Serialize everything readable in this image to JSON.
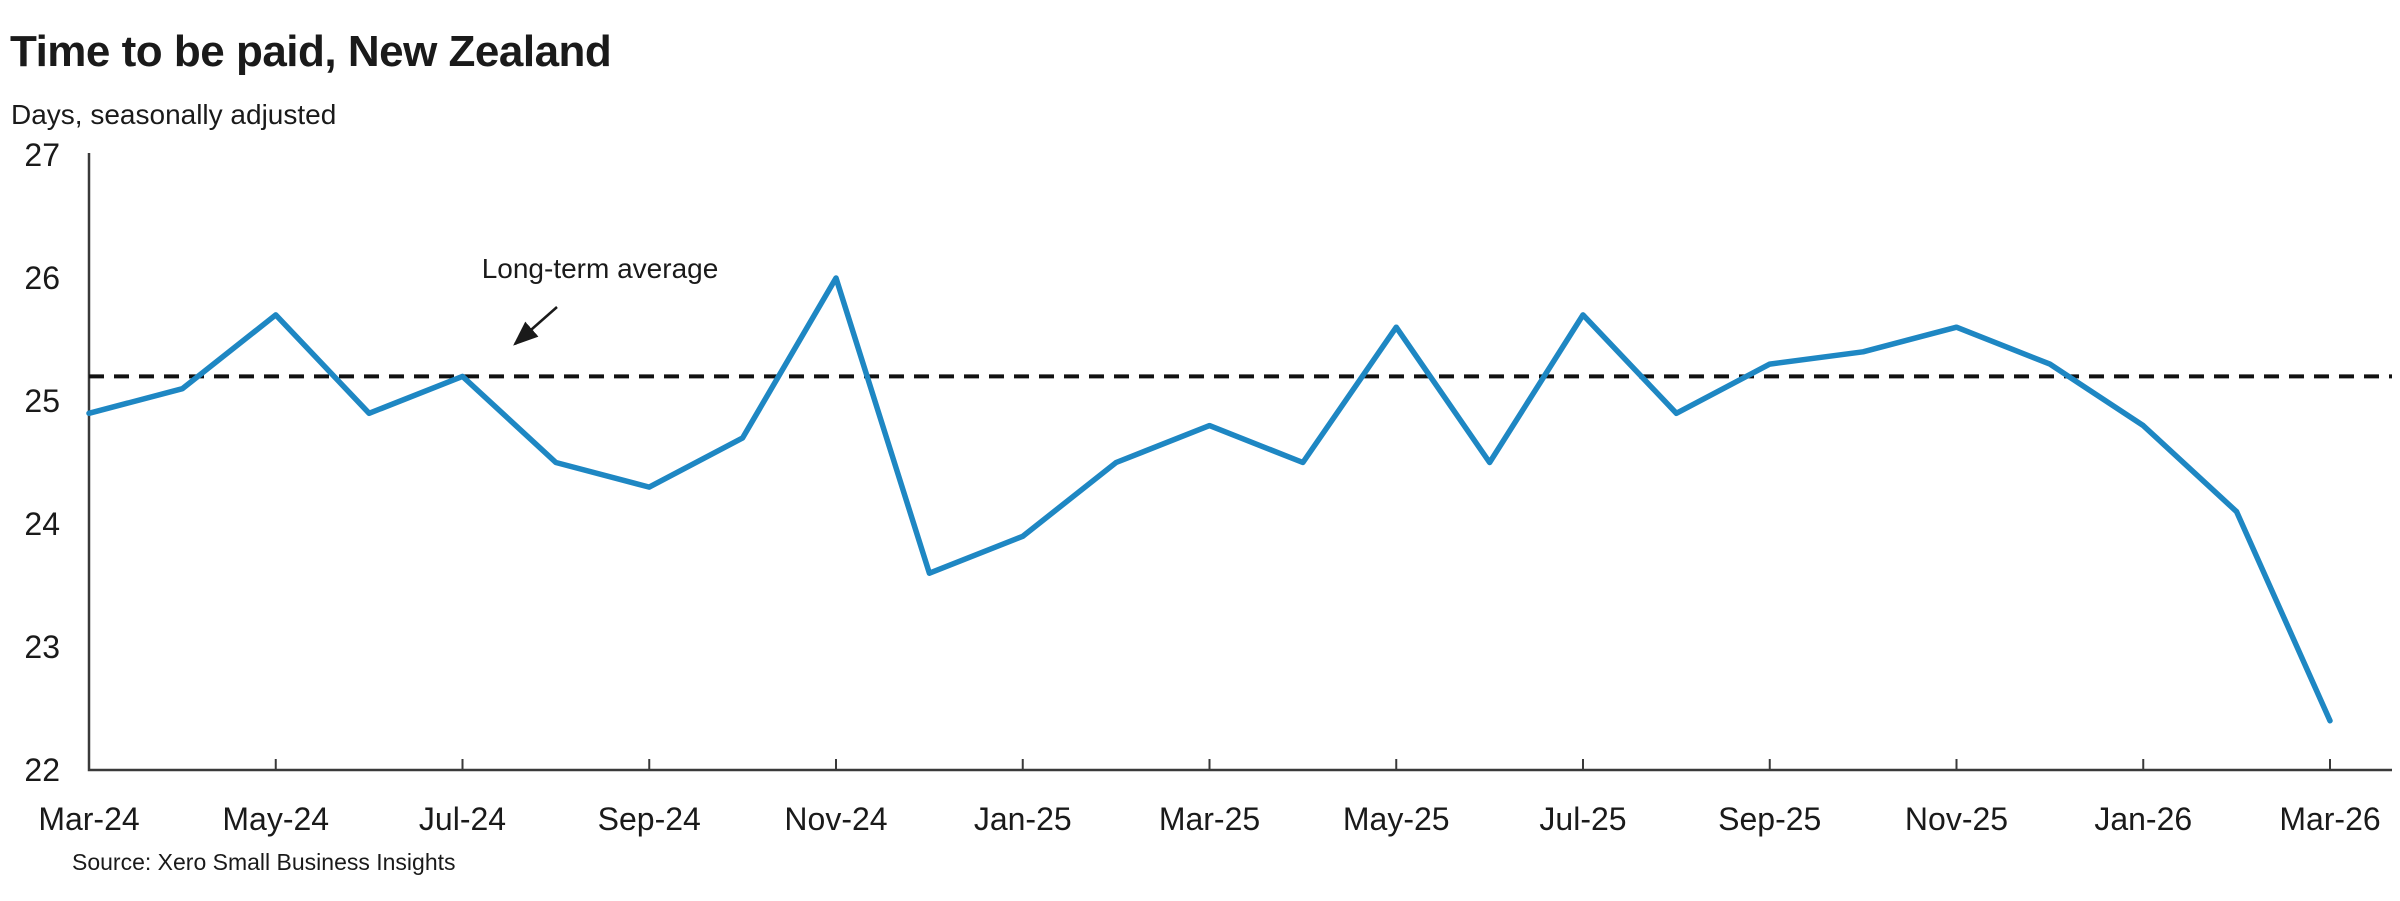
{
  "header": {
    "title": "Time to be paid, New Zealand",
    "subtitle": "Days, seasonally adjusted"
  },
  "annotation": {
    "label": "Long-term average"
  },
  "source": {
    "text": "Source: Xero Small Business Insights"
  },
  "colors": {
    "series": "#1E87C3",
    "average_line": "#111111",
    "axis": "#3a3a3a",
    "text": "#1a1a1a"
  },
  "chart_data": {
    "type": "line",
    "title": "Time to be paid, New Zealand",
    "subtitle": "Days, seasonally adjusted",
    "unit": "days",
    "x": [
      "Mar-24",
      "Apr-24",
      "May-24",
      "Jun-24",
      "Jul-24",
      "Aug-24",
      "Sep-24",
      "Oct-24",
      "Nov-24",
      "Dec-24",
      "Jan-25",
      "Feb-25",
      "Mar-25",
      "Apr-25",
      "May-25",
      "Jun-25",
      "Jul-25",
      "Aug-25",
      "Sep-25",
      "Oct-25",
      "Nov-25",
      "Dec-25",
      "Jan-26",
      "Feb-26",
      "Mar-26"
    ],
    "series": [
      {
        "name": "Time to be paid (days, seasonally adjusted)",
        "values": [
          24.9,
          25.1,
          25.7,
          24.9,
          25.2,
          24.5,
          24.3,
          24.7,
          26.0,
          23.6,
          23.9,
          24.5,
          24.8,
          24.5,
          25.6,
          24.5,
          25.7,
          24.9,
          25.3,
          25.4,
          25.6,
          25.3,
          24.8,
          24.1,
          22.4
        ]
      }
    ],
    "reference_line": {
      "label": "Long-term average",
      "value": 25.2
    },
    "x_tick_labels": [
      "Mar-24",
      "May-24",
      "Jul-24",
      "Sep-24",
      "Nov-24",
      "Jan-25",
      "Mar-25",
      "May-25",
      "Jul-25",
      "Sep-25",
      "Nov-25",
      "Jan-26",
      "Mar-26"
    ],
    "y_ticks": [
      27,
      26,
      25,
      24,
      23,
      22
    ],
    "ylim": [
      22,
      27
    ],
    "grid": false,
    "legend": false
  }
}
